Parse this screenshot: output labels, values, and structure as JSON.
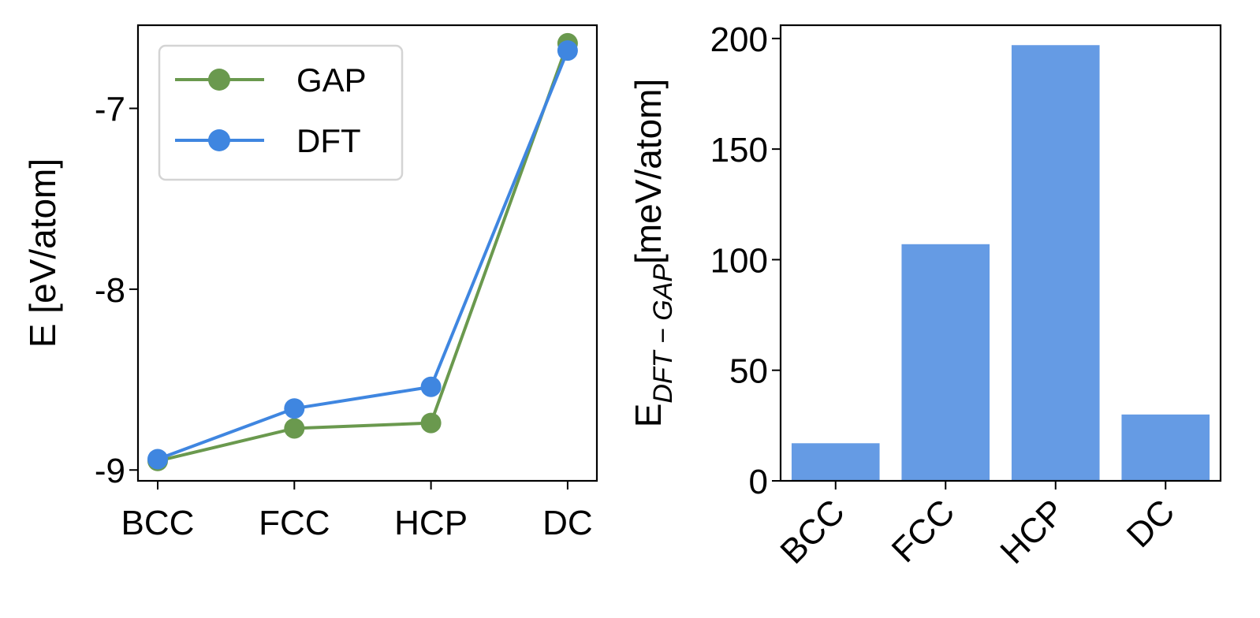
{
  "chart_data": [
    {
      "type": "line",
      "categories": [
        "BCC",
        "FCC",
        "HCP",
        "DC"
      ],
      "series": [
        {
          "name": "GAP",
          "color": "#6a994e",
          "values": [
            -8.95,
            -8.77,
            -8.74,
            -6.64
          ]
        },
        {
          "name": "DFT",
          "color": "#3f86e0",
          "values": [
            -8.94,
            -8.66,
            -8.54,
            -6.68
          ]
        }
      ],
      "title": "",
      "xlabel": "",
      "ylabel": "E [eV/atom]",
      "ylim": [
        -9.06,
        -6.54
      ],
      "yticks": [
        -9,
        -8,
        -7
      ],
      "ytick_labels": [
        "-9",
        "-8",
        "-7"
      ],
      "legend_location": "upper-left",
      "grid": false
    },
    {
      "type": "bar",
      "categories": [
        "BCC",
        "FCC",
        "HCP",
        "DC"
      ],
      "values": [
        17,
        107,
        197,
        30
      ],
      "color": "#659be4",
      "title": "",
      "xlabel": "",
      "ylabel_main": "E",
      "ylabel_sub": "DFT − GAP",
      "ylabel_unit": "[meV/atom]",
      "ylim": [
        0,
        206
      ],
      "yticks": [
        0,
        50,
        100,
        150,
        200
      ],
      "ytick_labels": [
        "0",
        "50",
        "100",
        "150",
        "200"
      ],
      "xtick_rotation": -45,
      "grid": false
    }
  ]
}
